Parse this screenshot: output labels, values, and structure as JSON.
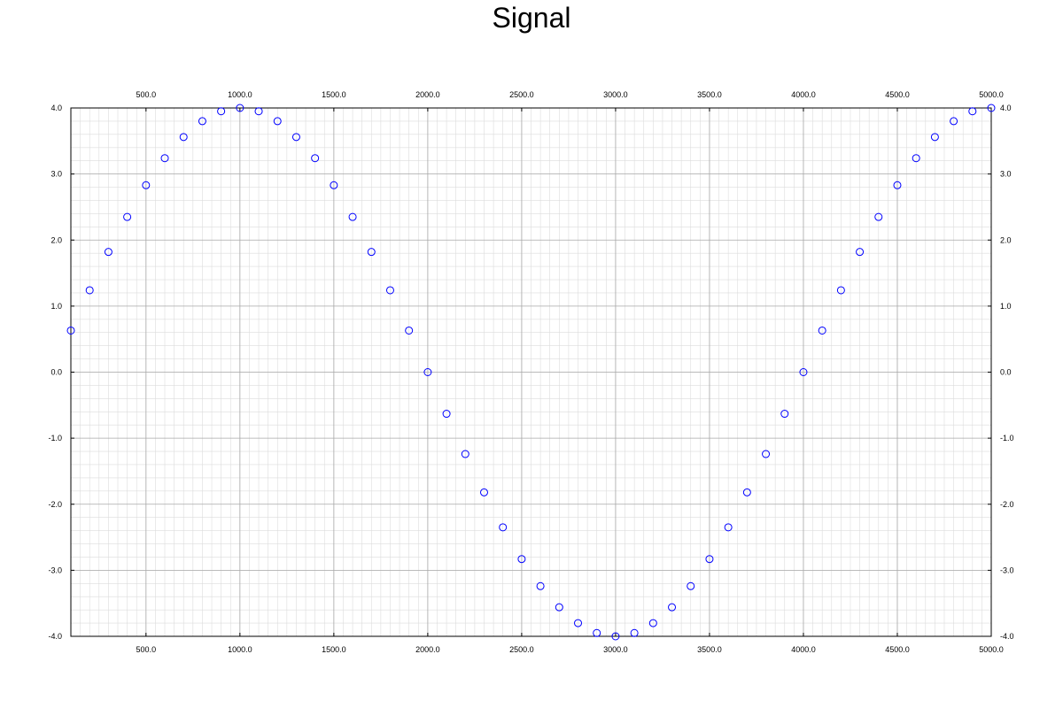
{
  "chart_data": {
    "type": "scatter",
    "title": "Signal",
    "xlabel": "",
    "ylabel": "",
    "xlim": [
      100,
      5000
    ],
    "ylim": [
      -4,
      4
    ],
    "x_ticks": [
      500,
      1000,
      1500,
      2000,
      2500,
      3000,
      3500,
      4000,
      4500,
      5000
    ],
    "y_ticks": [
      -4,
      -3,
      -2,
      -1,
      0,
      1,
      2,
      3,
      4
    ],
    "x_tick_labels": [
      "500.0",
      "1000.0",
      "1500.0",
      "2000.0",
      "2500.0",
      "3000.0",
      "3500.0",
      "4000.0",
      "4500.0",
      "5000.0"
    ],
    "y_tick_labels": [
      "-4.0",
      "-3.0",
      "-2.0",
      "-1.0",
      "0.0",
      "1.0",
      "2.0",
      "3.0",
      "4.0"
    ],
    "grid": true,
    "minor_grid": true,
    "axes_on": "all sides",
    "marker": "open circle",
    "colors": {
      "marker": "#0000ff",
      "major_grid": "#a9a9a9",
      "minor_grid": "#dcdcdc",
      "axis": "#000000"
    },
    "series": [
      {
        "x": [
          100,
          200,
          300,
          400,
          500,
          600,
          700,
          800,
          900,
          1000,
          1100,
          1200,
          1300,
          1400,
          1500,
          1600,
          1700,
          1800,
          1900,
          2000,
          2100,
          2200,
          2300,
          2400,
          2500,
          2600,
          2700,
          2800,
          2900,
          3000,
          3100,
          3200,
          3300,
          3400,
          3500,
          3600,
          3700,
          3800,
          3900,
          4000,
          4100,
          4200,
          4300,
          4400,
          4500,
          4600,
          4700,
          4800,
          4900,
          5000
        ],
        "y": [
          0.63,
          1.24,
          1.82,
          2.35,
          2.83,
          3.24,
          3.56,
          3.8,
          3.95,
          4.0,
          3.95,
          3.8,
          3.56,
          3.24,
          2.83,
          2.35,
          1.82,
          1.24,
          0.63,
          0.0,
          -0.63,
          -1.24,
          -1.82,
          -2.35,
          -2.83,
          -3.24,
          -3.56,
          -3.8,
          -3.95,
          -4.0,
          -3.95,
          -3.8,
          -3.56,
          -3.24,
          -2.83,
          -2.35,
          -1.82,
          -1.24,
          -0.63,
          0.0,
          0.63,
          1.24,
          1.82,
          2.35,
          2.83,
          3.24,
          3.56,
          3.8,
          3.95,
          4.0
        ]
      }
    ]
  }
}
